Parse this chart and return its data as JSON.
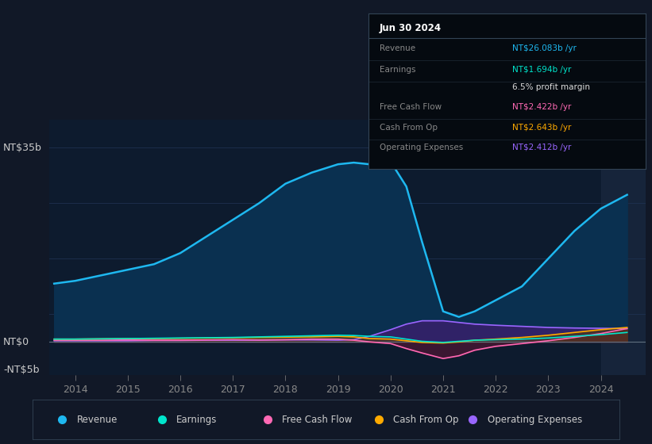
{
  "background_color": "#111827",
  "plot_bg_color": "#0d1b2e",
  "ylabel_top": "NT$35b",
  "ylabel_zero": "NT$0",
  "ylabel_neg": "-NT$5b",
  "ylim": [
    -6,
    40
  ],
  "xlim_start": 2013.5,
  "xlim_end": 2024.85,
  "xticks": [
    2014,
    2015,
    2016,
    2017,
    2018,
    2019,
    2020,
    2021,
    2022,
    2023,
    2024
  ],
  "forecast_start": 2024.0,
  "years": [
    2013.6,
    2014.0,
    2014.5,
    2015.0,
    2015.5,
    2016.0,
    2016.5,
    2017.0,
    2017.5,
    2018.0,
    2018.5,
    2019.0,
    2019.3,
    2019.6,
    2020.0,
    2020.3,
    2020.6,
    2021.0,
    2021.3,
    2021.6,
    2022.0,
    2022.5,
    2023.0,
    2023.5,
    2024.0,
    2024.5
  ],
  "revenue": [
    10.5,
    11.0,
    12.0,
    13.0,
    14.0,
    16.0,
    19.0,
    22.0,
    25.0,
    28.5,
    30.5,
    32.0,
    32.3,
    32.0,
    32.5,
    28.0,
    18.0,
    5.5,
    4.5,
    5.5,
    7.5,
    10.0,
    15.0,
    20.0,
    24.0,
    26.5
  ],
  "earnings": [
    0.5,
    0.5,
    0.55,
    0.6,
    0.65,
    0.7,
    0.75,
    0.8,
    0.9,
    1.0,
    1.1,
    1.2,
    1.15,
    1.0,
    0.9,
    0.5,
    0.1,
    -0.1,
    0.1,
    0.3,
    0.4,
    0.5,
    0.7,
    1.0,
    1.3,
    1.7
  ],
  "free_cash_flow": [
    0.3,
    0.3,
    0.3,
    0.35,
    0.3,
    0.3,
    0.35,
    0.4,
    0.35,
    0.4,
    0.5,
    0.5,
    0.3,
    0.0,
    -0.3,
    -1.2,
    -2.0,
    -3.0,
    -2.5,
    -1.5,
    -0.8,
    -0.3,
    0.2,
    0.8,
    1.5,
    2.4
  ],
  "cash_from_op": [
    0.5,
    0.5,
    0.55,
    0.6,
    0.6,
    0.65,
    0.7,
    0.75,
    0.8,
    0.85,
    0.9,
    1.0,
    0.9,
    0.6,
    0.5,
    0.2,
    -0.1,
    -0.2,
    0.0,
    0.3,
    0.5,
    0.8,
    1.2,
    1.7,
    2.2,
    2.6
  ],
  "operating_expenses": [
    0.2,
    0.2,
    0.2,
    0.2,
    0.25,
    0.25,
    0.3,
    0.3,
    0.3,
    0.35,
    0.35,
    0.3,
    0.4,
    1.0,
    2.2,
    3.2,
    3.8,
    3.8,
    3.5,
    3.2,
    3.0,
    2.8,
    2.6,
    2.5,
    2.45,
    2.4
  ],
  "revenue_color": "#1eb8f0",
  "earnings_color": "#00e5cc",
  "fcf_color": "#ff69b4",
  "cashop_color": "#ffaa00",
  "opex_color": "#9966ff",
  "revenue_fill": "#0a3050",
  "opex_fill": "#3a1f6e",
  "fcf_fill": "#5a1535",
  "cashop_fill": "#5a4000",
  "legend_items": [
    {
      "label": "Revenue",
      "color": "#1eb8f0"
    },
    {
      "label": "Earnings",
      "color": "#00e5cc"
    },
    {
      "label": "Free Cash Flow",
      "color": "#ff69b4"
    },
    {
      "label": "Cash From Op",
      "color": "#ffaa00"
    },
    {
      "label": "Operating Expenses",
      "color": "#9966ff"
    }
  ],
  "tooltip_title": "Jun 30 2024",
  "tooltip_rows": [
    {
      "label": "Revenue",
      "value": "NT$26.083b /yr",
      "lcolor": "#888888",
      "vcolor": "#1eb8f0"
    },
    {
      "label": "Earnings",
      "value": "NT$1.694b /yr",
      "lcolor": "#888888",
      "vcolor": "#00e5cc"
    },
    {
      "label": "",
      "value": "6.5% profit margin",
      "lcolor": "#888888",
      "vcolor": "#dddddd"
    },
    {
      "label": "Free Cash Flow",
      "value": "NT$2.422b /yr",
      "lcolor": "#888888",
      "vcolor": "#ff69b4"
    },
    {
      "label": "Cash From Op",
      "value": "NT$2.643b /yr",
      "lcolor": "#888888",
      "vcolor": "#ffaa00"
    },
    {
      "label": "Operating Expenses",
      "value": "NT$2.412b /yr",
      "lcolor": "#888888",
      "vcolor": "#9966ff"
    }
  ]
}
